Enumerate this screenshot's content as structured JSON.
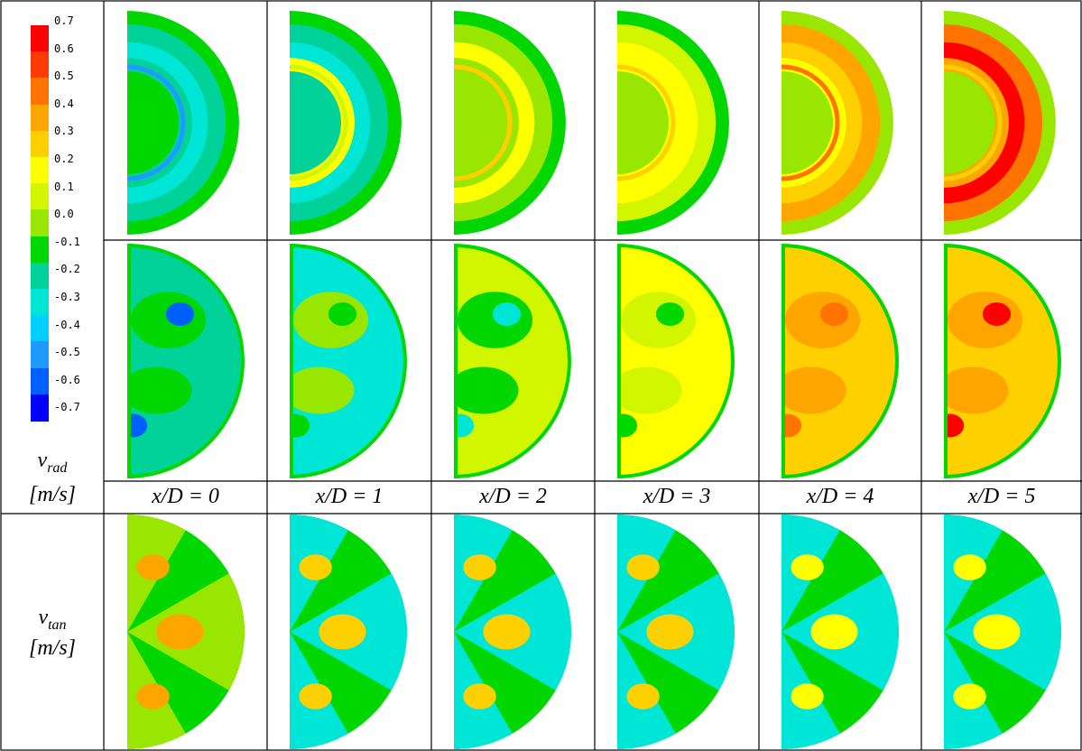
{
  "legend": {
    "ticks": [
      "0.7",
      "0.6",
      "0.5",
      "0.4",
      "0.3",
      "0.2",
      "0.1",
      "0.0",
      "-0.1",
      "-0.2",
      "-0.3",
      "-0.4",
      "-0.5",
      "-0.6",
      "-0.7"
    ],
    "colors": [
      "#ff0000",
      "#ff3a00",
      "#ff7300",
      "#ffa500",
      "#ffd000",
      "#ffff00",
      "#d2f500",
      "#99e600",
      "#00d700",
      "#00d29a",
      "#00e6d6",
      "#00cfff",
      "#1d9bff",
      "#0060ff",
      "#0000ff"
    ]
  },
  "columns": [
    "x/D = 0",
    "x/D = 1",
    "x/D = 2",
    "x/D = 3",
    "x/D = 4",
    "x/D = 5"
  ],
  "row_labels": {
    "rad_symbol": "v",
    "rad_sub": "rad",
    "rad_unit": "[m/s]",
    "tan_symbol": "v",
    "tan_sub": "tan",
    "tan_unit": "[m/s]"
  },
  "fields": {
    "top": [
      {
        "outer": "#00d700",
        "rings": [
          "#00d29a",
          "#00e6d6",
          "#00d29a"
        ],
        "center": "#00d700",
        "accent": "#1d9bff"
      },
      {
        "outer": "#00d700",
        "rings": [
          "#00d29a",
          "#00e6d6",
          "#ffff00"
        ],
        "center": "#00d29a",
        "accent": "#d2f500"
      },
      {
        "outer": "#00d700",
        "rings": [
          "#99e600",
          "#ffff00",
          "#99e600"
        ],
        "center": "#99e600",
        "accent": "#ffd000"
      },
      {
        "outer": "#00d700",
        "rings": [
          "#d2f500",
          "#ffff00",
          "#ffff00"
        ],
        "center": "#99e600",
        "accent": "#ffd000"
      },
      {
        "outer": "#99e600",
        "rings": [
          "#ffa500",
          "#ffd000",
          "#ffff00"
        ],
        "center": "#99e600",
        "accent": "#ff7300"
      },
      {
        "outer": "#99e600",
        "rings": [
          "#ff7300",
          "#ff0000",
          "#ffa500"
        ],
        "center": "#99e600",
        "accent": "#ffd000"
      }
    ],
    "middle": [
      {
        "base": "#00d29a",
        "blob": "#00d700",
        "accent": "#0060ff"
      },
      {
        "base": "#00e6d6",
        "blob": "#99e600",
        "accent": "#00d700"
      },
      {
        "base": "#d2f500",
        "blob": "#00d700",
        "accent": "#00e6d6"
      },
      {
        "base": "#ffff00",
        "blob": "#d2f500",
        "accent": "#00d700"
      },
      {
        "base": "#ffd000",
        "blob": "#ffa500",
        "accent": "#ff7300"
      },
      {
        "base": "#ffd000",
        "blob": "#ffa500",
        "accent": "#ff0000"
      }
    ],
    "bottom": [
      {
        "base": "#00d700",
        "lobe": "#99e600",
        "accent": "#ffa500"
      },
      {
        "base": "#00d700",
        "lobe": "#00e6d6",
        "accent": "#ffd000"
      },
      {
        "base": "#00d700",
        "lobe": "#00e6d6",
        "accent": "#ffd000"
      },
      {
        "base": "#00d700",
        "lobe": "#00e6d6",
        "accent": "#ffd000"
      },
      {
        "base": "#00d700",
        "lobe": "#00e6d6",
        "accent": "#ffff00"
      },
      {
        "base": "#00d700",
        "lobe": "#00e6d6",
        "accent": "#ffff00"
      }
    ]
  }
}
